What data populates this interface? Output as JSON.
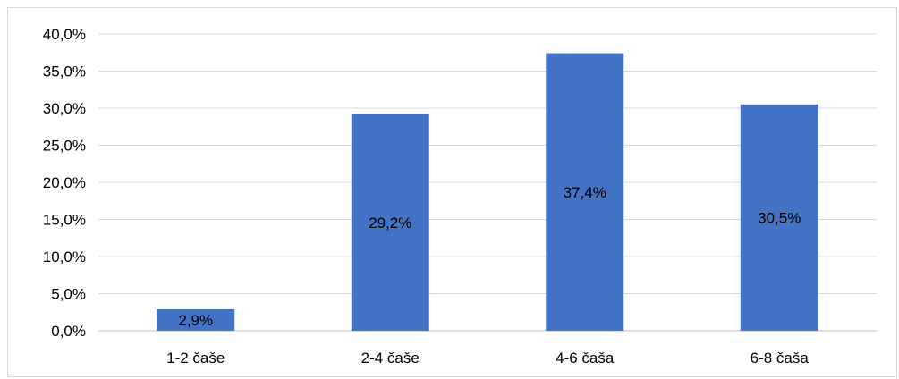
{
  "chart_data": {
    "type": "bar",
    "categories": [
      "1-2 čaše",
      "2-4 čaše",
      "4-6 čaša",
      "6-8 čaša"
    ],
    "values": [
      2.9,
      29.2,
      37.4,
      30.5
    ],
    "data_labels": [
      "2,9%",
      "29,2%",
      "37,4%",
      "30,5%"
    ],
    "y_ticks": [
      0,
      5,
      10,
      15,
      20,
      25,
      30,
      35,
      40
    ],
    "y_tick_labels": [
      "0,0%",
      "5,0%",
      "10,0%",
      "15,0%",
      "20,0%",
      "25,0%",
      "30,0%",
      "35,0%",
      "40,0%"
    ],
    "ylim": [
      0,
      40
    ],
    "grid": true,
    "legend": "none",
    "colors": {
      "bar": "#4472c4",
      "grid": "#d9d9d9",
      "axis": "#bfbfbf"
    }
  }
}
